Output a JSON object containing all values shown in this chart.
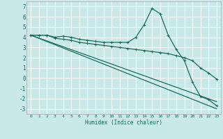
{
  "xlabel": "Humidex (Indice chaleur)",
  "xlim": [
    -0.5,
    23.5
  ],
  "ylim": [
    -3.5,
    7.5
  ],
  "xticks": [
    0,
    1,
    2,
    3,
    4,
    5,
    6,
    7,
    8,
    9,
    10,
    11,
    12,
    13,
    14,
    15,
    16,
    17,
    18,
    19,
    20,
    21,
    22,
    23
  ],
  "yticks": [
    -3,
    -2,
    -1,
    0,
    1,
    2,
    3,
    4,
    5,
    6,
    7
  ],
  "background_color": "#c9e8e8",
  "grid_color": "#b0d4d4",
  "line_color": "#1a6b5a",
  "series": {
    "curve1": {
      "x": [
        0,
        1,
        2,
        3,
        4,
        5,
        6,
        7,
        8,
        9,
        10,
        11,
        12,
        13,
        14,
        15,
        16,
        17,
        18,
        19,
        20,
        21,
        22,
        23
      ],
      "y": [
        4.2,
        4.2,
        4.2,
        4.0,
        4.1,
        4.0,
        3.8,
        3.7,
        3.6,
        3.5,
        3.5,
        3.5,
        3.5,
        4.0,
        5.2,
        6.8,
        6.3,
        4.2,
        2.8,
        1.7,
        -0.4,
        -1.8,
        -2.1,
        -2.7
      ]
    },
    "curve2": {
      "x": [
        0,
        1,
        2,
        3,
        4,
        5,
        6,
        7,
        8,
        9,
        10,
        11,
        12,
        13,
        14,
        15,
        16,
        17,
        18,
        19,
        20,
        21,
        22,
        23
      ],
      "y": [
        4.2,
        4.2,
        4.2,
        3.9,
        3.8,
        3.7,
        3.5,
        3.4,
        3.3,
        3.2,
        3.1,
        3.0,
        2.9,
        2.8,
        2.7,
        2.6,
        2.5,
        2.4,
        2.2,
        2.0,
        1.7,
        1.0,
        0.5,
        -0.1
      ]
    },
    "curve3": {
      "x": [
        0,
        23
      ],
      "y": [
        4.2,
        -2.3
      ]
    },
    "curve4": {
      "x": [
        0,
        23
      ],
      "y": [
        4.2,
        -3.0
      ]
    }
  }
}
